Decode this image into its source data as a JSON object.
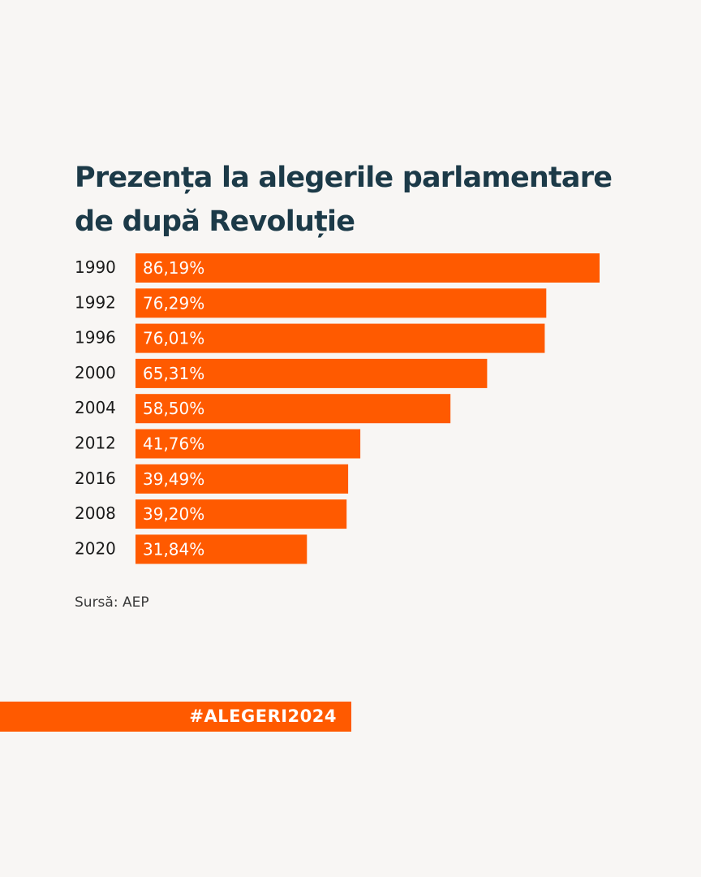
{
  "title_lines": [
    "Prezența la alegerile parlamentare",
    "de după Revoluție"
  ],
  "source": "Sursă: AEP",
  "hashtag": "#ALEGERI2024",
  "colors": {
    "background": "#f8f6f4",
    "bar": "#ff5a00",
    "title": "#1c3a48"
  },
  "chart_data": {
    "type": "bar",
    "orientation": "horizontal",
    "title": "Prezența la alegerile parlamentare de după Revoluție",
    "categories": [
      "1990",
      "1992",
      "1996",
      "2000",
      "2004",
      "2012",
      "2016",
      "2008",
      "2020"
    ],
    "values": [
      86.19,
      76.29,
      76.01,
      65.31,
      58.5,
      41.76,
      39.49,
      39.2,
      31.84
    ],
    "value_labels": [
      "86,19%",
      "76,29%",
      "76,01%",
      "65,31%",
      "58,50%",
      "41,76%",
      "39,49%",
      "39,20%",
      "31,84%"
    ],
    "xlim": [
      0,
      86.19
    ],
    "grid": false,
    "legend": "none"
  }
}
